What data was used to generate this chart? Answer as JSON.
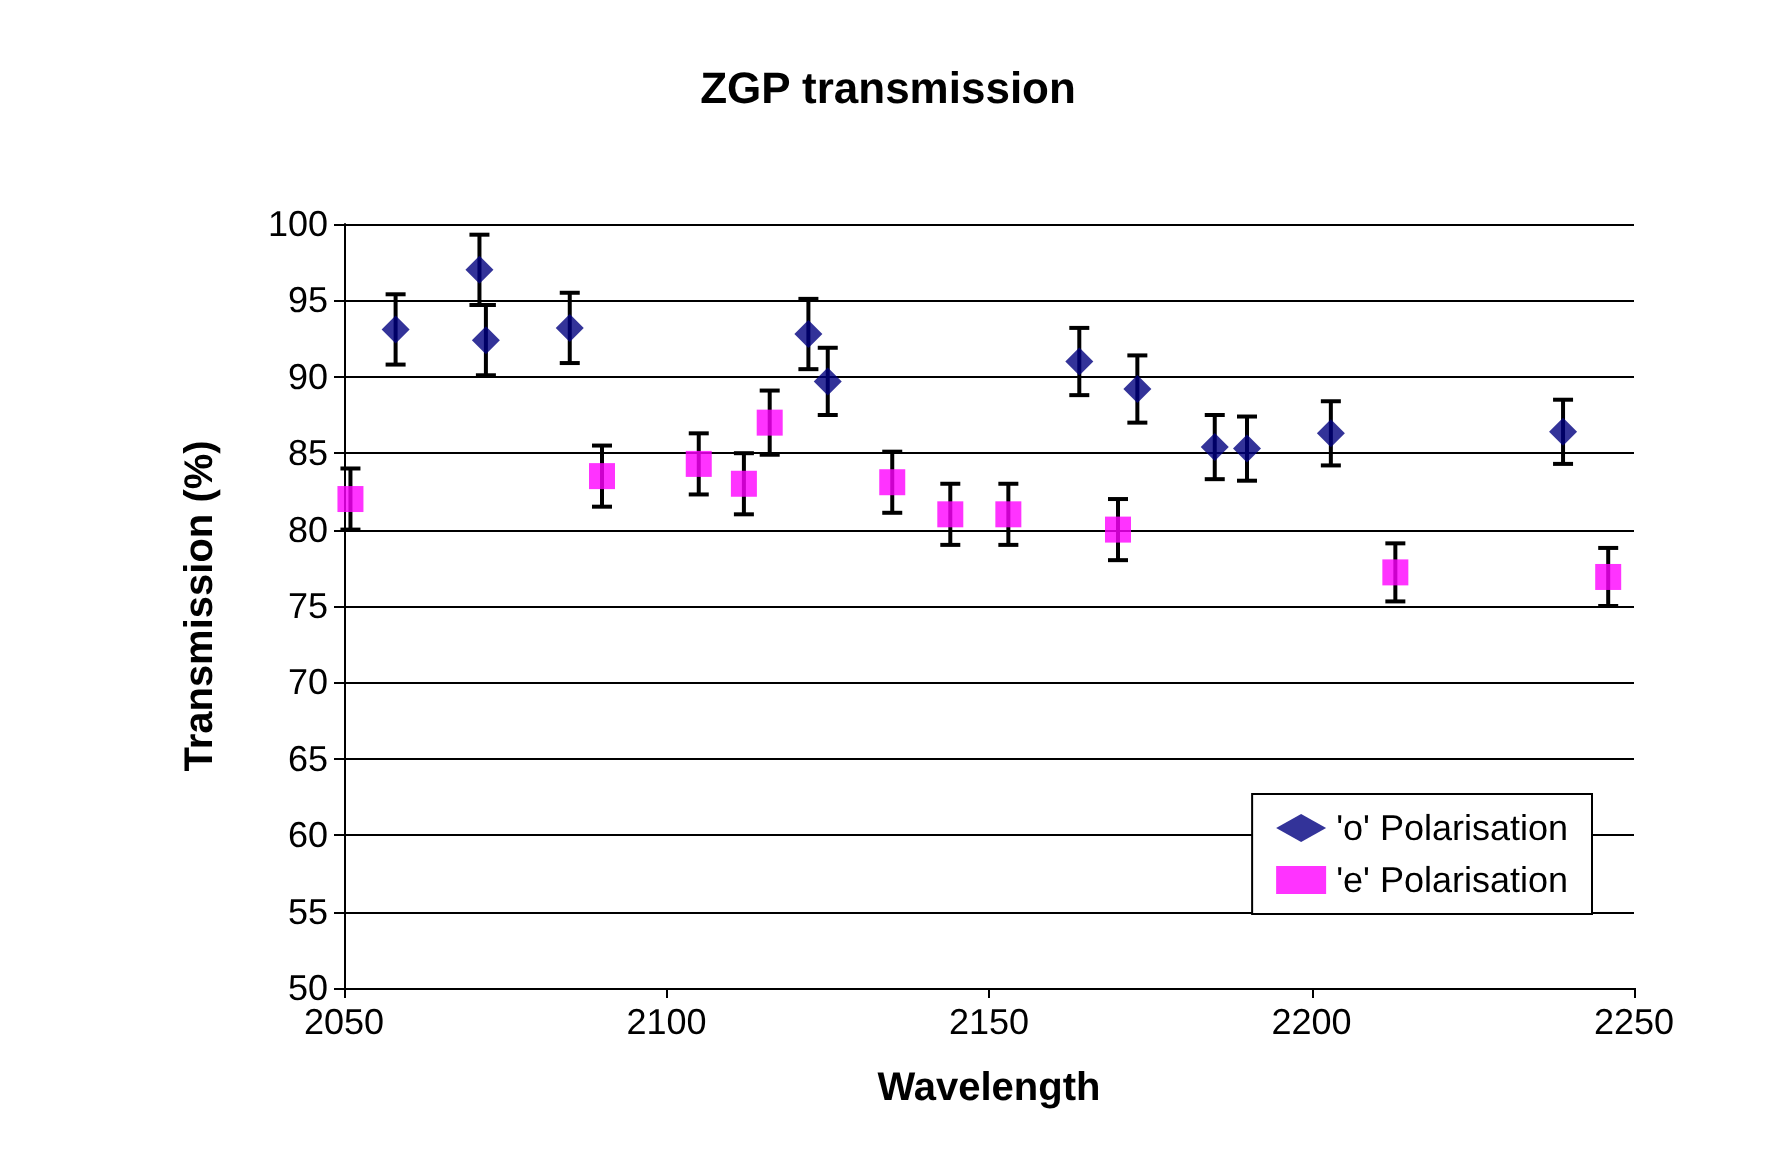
{
  "chart_data": {
    "type": "scatter",
    "title": "ZGP transmission",
    "xlabel": "Wavelength",
    "ylabel": "Transmission (%)",
    "xlim": [
      2050,
      2250
    ],
    "xticks": [
      2050,
      2100,
      2150,
      2200,
      2250
    ],
    "ylim": [
      50,
      100
    ],
    "yticks": [
      50,
      55,
      60,
      65,
      70,
      75,
      80,
      85,
      90,
      95,
      100
    ],
    "grid": "y",
    "legend": "bottom right",
    "series": [
      {
        "name": "'o' Polarisation",
        "color": "#000080",
        "marker": "diamond",
        "x": [
          2058,
          2071,
          2072,
          2085,
          2122,
          2125,
          2164,
          2173,
          2185,
          2190,
          2203,
          2239
        ],
        "values": [
          93.1,
          97,
          92.4,
          93.2,
          92.8,
          89.7,
          91,
          89.2,
          85.4,
          85.3,
          86.3,
          86.4
        ],
        "errors": [
          2.3,
          2.3,
          2.3,
          2.3,
          2.3,
          2.2,
          2.2,
          2.2,
          2.1,
          2.1,
          2.1,
          2.1
        ]
      },
      {
        "name": "'e' Polarisation",
        "color": "#ff00ff",
        "marker": "square",
        "x": [
          2051,
          2090,
          2105,
          2112,
          2116,
          2135,
          2144,
          2153,
          2170,
          2213,
          2246
        ],
        "values": [
          82,
          83.5,
          84.3,
          83,
          87,
          83.1,
          81,
          81,
          80,
          77.2,
          76.9
        ],
        "errors": [
          2,
          2,
          2,
          2,
          2.1,
          2,
          2,
          2,
          2,
          1.9,
          1.9
        ]
      }
    ]
  }
}
